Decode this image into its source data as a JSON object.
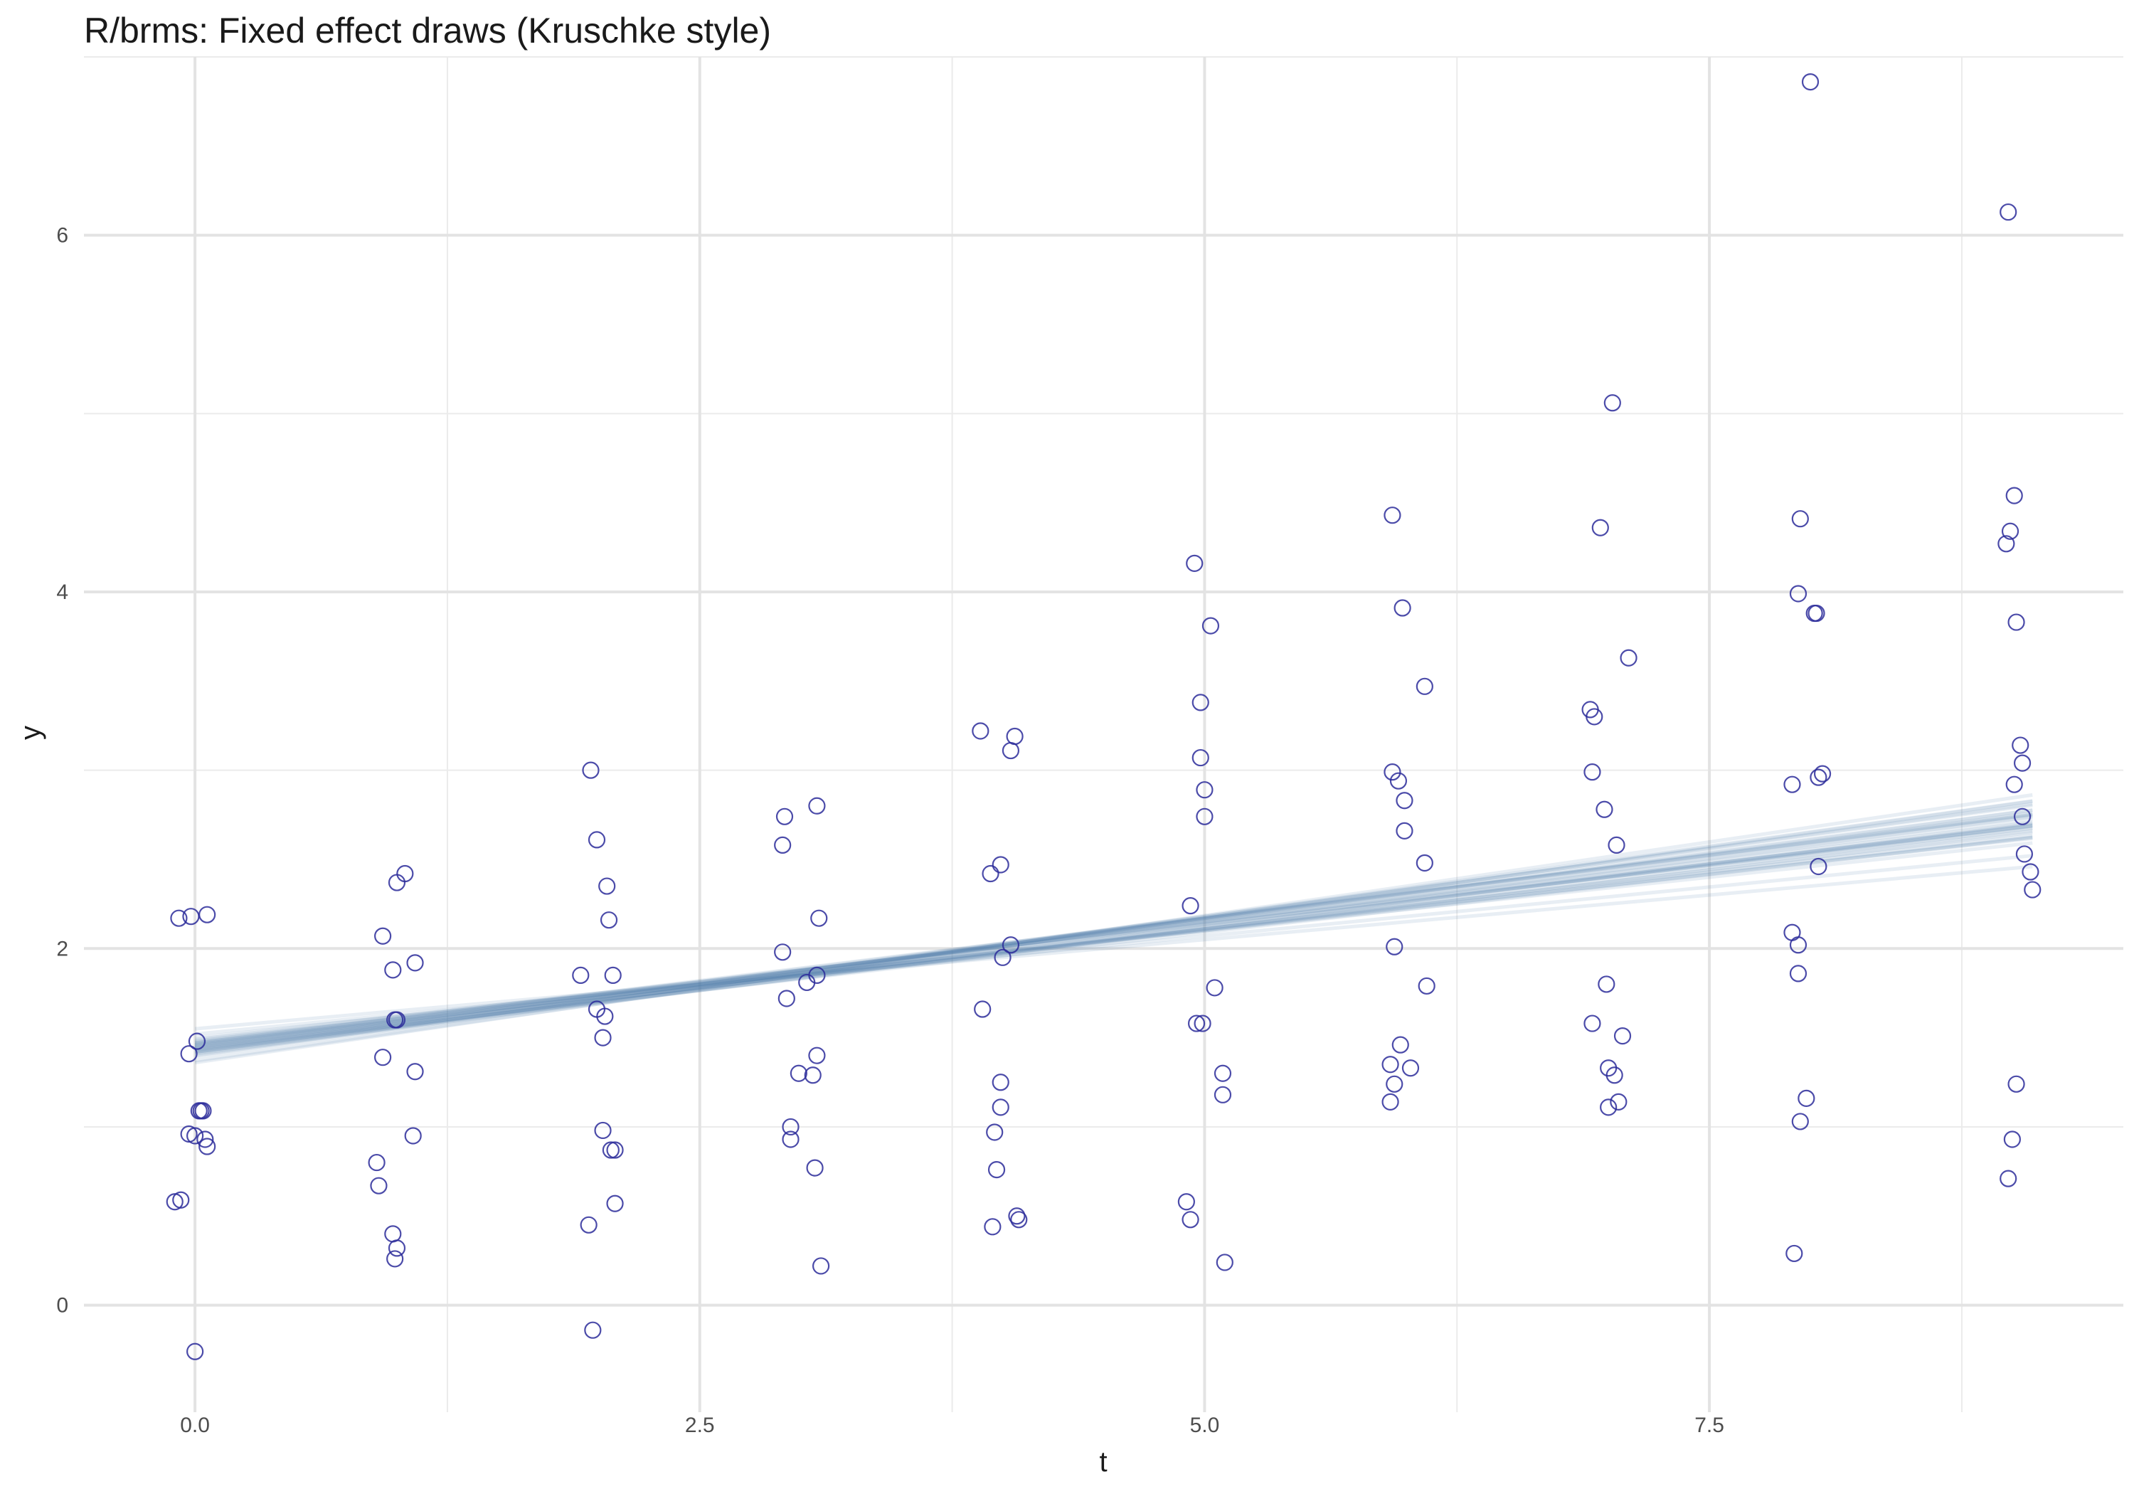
{
  "chart_data": {
    "type": "scatter",
    "title": "R/brms: Fixed effect draws (Kruschke style)",
    "xlabel": "t",
    "ylabel": "y",
    "xlim": [
      -0.55,
      9.55
    ],
    "ylim": [
      -0.6,
      7.0
    ],
    "x_ticks": [
      0.0,
      2.5,
      5.0,
      7.5
    ],
    "x_tick_labels": [
      "0.0",
      "2.5",
      "5.0",
      "7.5"
    ],
    "y_ticks": [
      0,
      2,
      4,
      6
    ],
    "y_tick_labels": [
      "0",
      "2",
      "4",
      "6"
    ],
    "grid": true,
    "legend": "none",
    "point_color": "#2c2c9a",
    "line_color": "#4a7fad",
    "points": [
      [
        -0.08,
        2.17
      ],
      [
        -0.02,
        2.18
      ],
      [
        0.06,
        2.19
      ],
      [
        -0.03,
        1.41
      ],
      [
        0.01,
        1.48
      ],
      [
        0.02,
        1.09
      ],
      [
        0.03,
        1.09
      ],
      [
        0.04,
        1.09
      ],
      [
        -0.03,
        0.96
      ],
      [
        0.0,
        0.95
      ],
      [
        0.05,
        0.93
      ],
      [
        0.06,
        0.89
      ],
      [
        -0.1,
        0.58
      ],
      [
        -0.07,
        0.59
      ],
      [
        0.0,
        -0.26
      ],
      [
        0.93,
        2.07
      ],
      [
        0.98,
        1.88
      ],
      [
        1.0,
        2.37
      ],
      [
        1.04,
        2.42
      ],
      [
        1.09,
        1.92
      ],
      [
        0.99,
        1.6
      ],
      [
        1.0,
        1.6
      ],
      [
        0.93,
        1.39
      ],
      [
        1.09,
        1.31
      ],
      [
        1.08,
        0.95
      ],
      [
        0.9,
        0.8
      ],
      [
        0.91,
        0.67
      ],
      [
        0.98,
        0.4
      ],
      [
        1.0,
        0.32
      ],
      [
        0.99,
        0.26
      ],
      [
        1.96,
        3.0
      ],
      [
        1.99,
        2.61
      ],
      [
        2.04,
        2.35
      ],
      [
        2.05,
        2.16
      ],
      [
        1.91,
        1.85
      ],
      [
        2.07,
        1.85
      ],
      [
        1.99,
        1.66
      ],
      [
        2.03,
        1.62
      ],
      [
        2.02,
        1.5
      ],
      [
        2.02,
        0.98
      ],
      [
        2.06,
        0.87
      ],
      [
        2.08,
        0.87
      ],
      [
        2.08,
        0.57
      ],
      [
        1.95,
        0.45
      ],
      [
        1.97,
        -0.14
      ],
      [
        2.92,
        2.74
      ],
      [
        2.91,
        2.58
      ],
      [
        3.08,
        2.8
      ],
      [
        2.91,
        1.98
      ],
      [
        3.09,
        2.17
      ],
      [
        2.93,
        1.72
      ],
      [
        3.03,
        1.81
      ],
      [
        3.08,
        1.85
      ],
      [
        3.08,
        1.4
      ],
      [
        2.99,
        1.3
      ],
      [
        3.06,
        1.29
      ],
      [
        2.95,
        1.0
      ],
      [
        2.95,
        0.93
      ],
      [
        3.07,
        0.77
      ],
      [
        3.1,
        0.22
      ],
      [
        3.89,
        3.22
      ],
      [
        4.06,
        3.19
      ],
      [
        4.04,
        3.11
      ],
      [
        3.99,
        2.47
      ],
      [
        3.94,
        2.42
      ],
      [
        4.04,
        2.02
      ],
      [
        4.0,
        1.95
      ],
      [
        3.9,
        1.66
      ],
      [
        3.99,
        1.25
      ],
      [
        3.99,
        1.11
      ],
      [
        3.96,
        0.97
      ],
      [
        3.97,
        0.76
      ],
      [
        4.07,
        0.5
      ],
      [
        4.08,
        0.48
      ],
      [
        3.95,
        0.44
      ],
      [
        4.95,
        4.16
      ],
      [
        5.03,
        3.81
      ],
      [
        4.98,
        3.38
      ],
      [
        4.98,
        3.07
      ],
      [
        5.0,
        2.89
      ],
      [
        5.0,
        2.74
      ],
      [
        4.93,
        2.24
      ],
      [
        5.05,
        1.78
      ],
      [
        4.96,
        1.58
      ],
      [
        4.99,
        1.58
      ],
      [
        5.09,
        1.3
      ],
      [
        5.09,
        1.18
      ],
      [
        4.91,
        0.58
      ],
      [
        4.93,
        0.48
      ],
      [
        5.1,
        0.24
      ],
      [
        5.93,
        4.43
      ],
      [
        5.98,
        3.91
      ],
      [
        6.09,
        3.47
      ],
      [
        5.93,
        2.99
      ],
      [
        5.96,
        2.94
      ],
      [
        5.99,
        2.83
      ],
      [
        5.99,
        2.66
      ],
      [
        6.09,
        2.48
      ],
      [
        5.94,
        2.01
      ],
      [
        6.1,
        1.79
      ],
      [
        5.97,
        1.46
      ],
      [
        5.92,
        1.35
      ],
      [
        6.02,
        1.33
      ],
      [
        5.94,
        1.24
      ],
      [
        5.92,
        1.14
      ],
      [
        7.02,
        5.06
      ],
      [
        6.96,
        4.36
      ],
      [
        7.1,
        3.63
      ],
      [
        6.91,
        3.34
      ],
      [
        6.93,
        3.3
      ],
      [
        6.92,
        2.99
      ],
      [
        6.98,
        2.78
      ],
      [
        7.04,
        2.58
      ],
      [
        6.99,
        1.8
      ],
      [
        6.92,
        1.58
      ],
      [
        7.07,
        1.51
      ],
      [
        7.0,
        1.33
      ],
      [
        7.03,
        1.29
      ],
      [
        7.05,
        1.14
      ],
      [
        7.0,
        1.11
      ],
      [
        8.0,
        6.86
      ],
      [
        7.95,
        4.41
      ],
      [
        7.94,
        3.99
      ],
      [
        8.02,
        3.88
      ],
      [
        8.03,
        3.88
      ],
      [
        8.06,
        2.98
      ],
      [
        8.04,
        2.96
      ],
      [
        7.91,
        2.92
      ],
      [
        8.04,
        2.46
      ],
      [
        7.91,
        2.09
      ],
      [
        7.94,
        2.02
      ],
      [
        7.94,
        1.86
      ],
      [
        7.98,
        1.16
      ],
      [
        7.95,
        1.03
      ],
      [
        7.92,
        0.29
      ],
      [
        8.98,
        6.13
      ],
      [
        9.01,
        4.54
      ],
      [
        8.99,
        4.34
      ],
      [
        8.97,
        4.27
      ],
      [
        9.02,
        3.83
      ],
      [
        9.04,
        3.14
      ],
      [
        9.05,
        3.04
      ],
      [
        9.01,
        2.92
      ],
      [
        9.05,
        2.74
      ],
      [
        9.06,
        2.53
      ],
      [
        9.09,
        2.43
      ],
      [
        9.1,
        2.33
      ],
      [
        9.02,
        1.24
      ],
      [
        9.0,
        0.93
      ],
      [
        8.98,
        0.71
      ]
    ],
    "draws": [
      {
        "intercept": 1.43,
        "slope": 0.135
      },
      {
        "intercept": 1.45,
        "slope": 0.14
      },
      {
        "intercept": 1.47,
        "slope": 0.128
      },
      {
        "intercept": 1.41,
        "slope": 0.15
      },
      {
        "intercept": 1.44,
        "slope": 0.145
      },
      {
        "intercept": 1.49,
        "slope": 0.13
      },
      {
        "intercept": 1.42,
        "slope": 0.138
      },
      {
        "intercept": 1.46,
        "slope": 0.142
      },
      {
        "intercept": 1.4,
        "slope": 0.155
      },
      {
        "intercept": 1.48,
        "slope": 0.125
      },
      {
        "intercept": 1.43,
        "slope": 0.148
      },
      {
        "intercept": 1.45,
        "slope": 0.132
      },
      {
        "intercept": 1.5,
        "slope": 0.12
      },
      {
        "intercept": 1.39,
        "slope": 0.158
      },
      {
        "intercept": 1.44,
        "slope": 0.137
      },
      {
        "intercept": 1.46,
        "slope": 0.135
      },
      {
        "intercept": 1.42,
        "slope": 0.145
      },
      {
        "intercept": 1.47,
        "slope": 0.14
      },
      {
        "intercept": 1.36,
        "slope": 0.165
      },
      {
        "intercept": 1.55,
        "slope": 0.1
      },
      {
        "intercept": 1.52,
        "slope": 0.11
      },
      {
        "intercept": 1.37,
        "slope": 0.16
      },
      {
        "intercept": 1.44,
        "slope": 0.13
      },
      {
        "intercept": 1.45,
        "slope": 0.143
      },
      {
        "intercept": 1.41,
        "slope": 0.142
      },
      {
        "intercept": 1.48,
        "slope": 0.133
      },
      {
        "intercept": 1.43,
        "slope": 0.139
      },
      {
        "intercept": 1.46,
        "slope": 0.128
      },
      {
        "intercept": 1.42,
        "slope": 0.152
      },
      {
        "intercept": 1.47,
        "slope": 0.136
      }
    ]
  }
}
